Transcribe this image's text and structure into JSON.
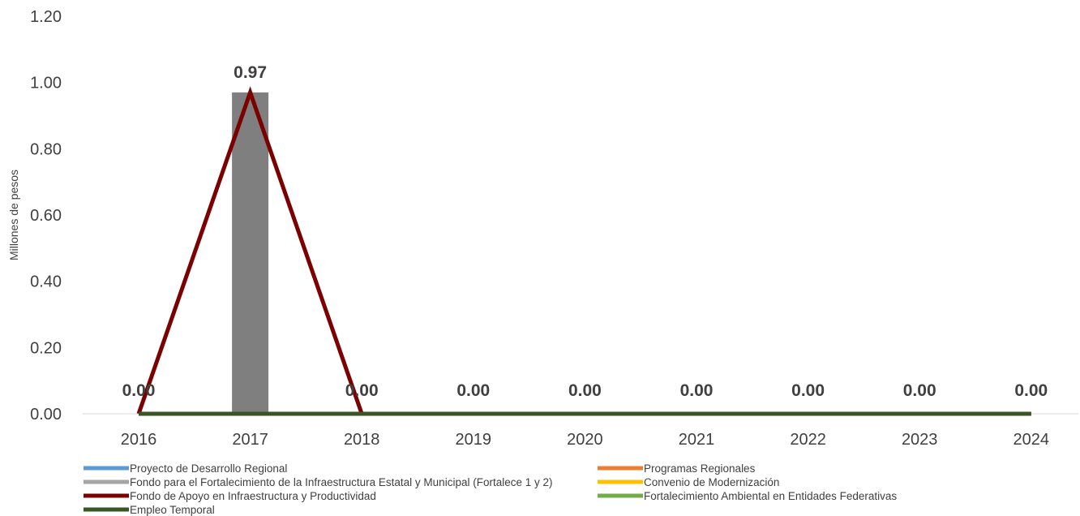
{
  "chart_data": {
    "type": "bar",
    "ylabel": "Millones de pesos",
    "xlabel": "",
    "ylim": [
      0,
      1.2
    ],
    "yticks": [
      "0.00",
      "0.20",
      "0.40",
      "0.60",
      "0.80",
      "1.00",
      "1.20"
    ],
    "categories": [
      "2016",
      "2017",
      "2018",
      "2019",
      "2020",
      "2021",
      "2022",
      "2023",
      "2024"
    ],
    "bar_series": {
      "name": "Fondo para el Fortalecimiento de la Infraestructura Estatal y Municipal (Fortalece 1 y 2)",
      "color": "#7f7f7f",
      "values": [
        0,
        0.97,
        0,
        0,
        0,
        0,
        0,
        0,
        0
      ]
    },
    "data_labels": [
      "0.00",
      "0.97",
      "0.00",
      "0.00",
      "0.00",
      "0.00",
      "0.00",
      "0.00",
      "0.00"
    ],
    "series": [
      {
        "name": "Proyecto de Desarrollo Regional",
        "color": "#5b9bd5",
        "values": [
          0,
          0,
          0,
          0,
          0,
          0,
          0,
          0,
          0
        ]
      },
      {
        "name": "Programas Regionales",
        "color": "#ed7d31",
        "values": [
          0,
          0,
          0,
          0,
          0,
          0,
          0,
          0,
          0
        ]
      },
      {
        "name": "Fondo para el Fortalecimiento de la Infraestructura Estatal y Municipal (Fortalece 1 y 2)",
        "color": "#a5a5a5",
        "values": [
          0,
          0,
          0,
          0,
          0,
          0,
          0,
          0,
          0
        ]
      },
      {
        "name": "Convenio de Modernización",
        "color": "#ffc000",
        "values": [
          0,
          0,
          0,
          0,
          0,
          0,
          0,
          0,
          0
        ]
      },
      {
        "name": "Fondo de Apoyo en Infraestructura y Productividad",
        "color": "#7b0000",
        "values": [
          0,
          0.97,
          0,
          null,
          null,
          null,
          null,
          null,
          null
        ]
      },
      {
        "name": "Fortalecimiento Ambiental en Entidades Federativas",
        "color": "#70ad47",
        "values": [
          0,
          0,
          0,
          0,
          0,
          0,
          0,
          0,
          0
        ]
      },
      {
        "name": "Empleo Temporal",
        "color": "#375623",
        "values": [
          0,
          0,
          0,
          0,
          0,
          0,
          0,
          0,
          0
        ]
      }
    ],
    "legend_position": "bottom",
    "grid": false
  }
}
